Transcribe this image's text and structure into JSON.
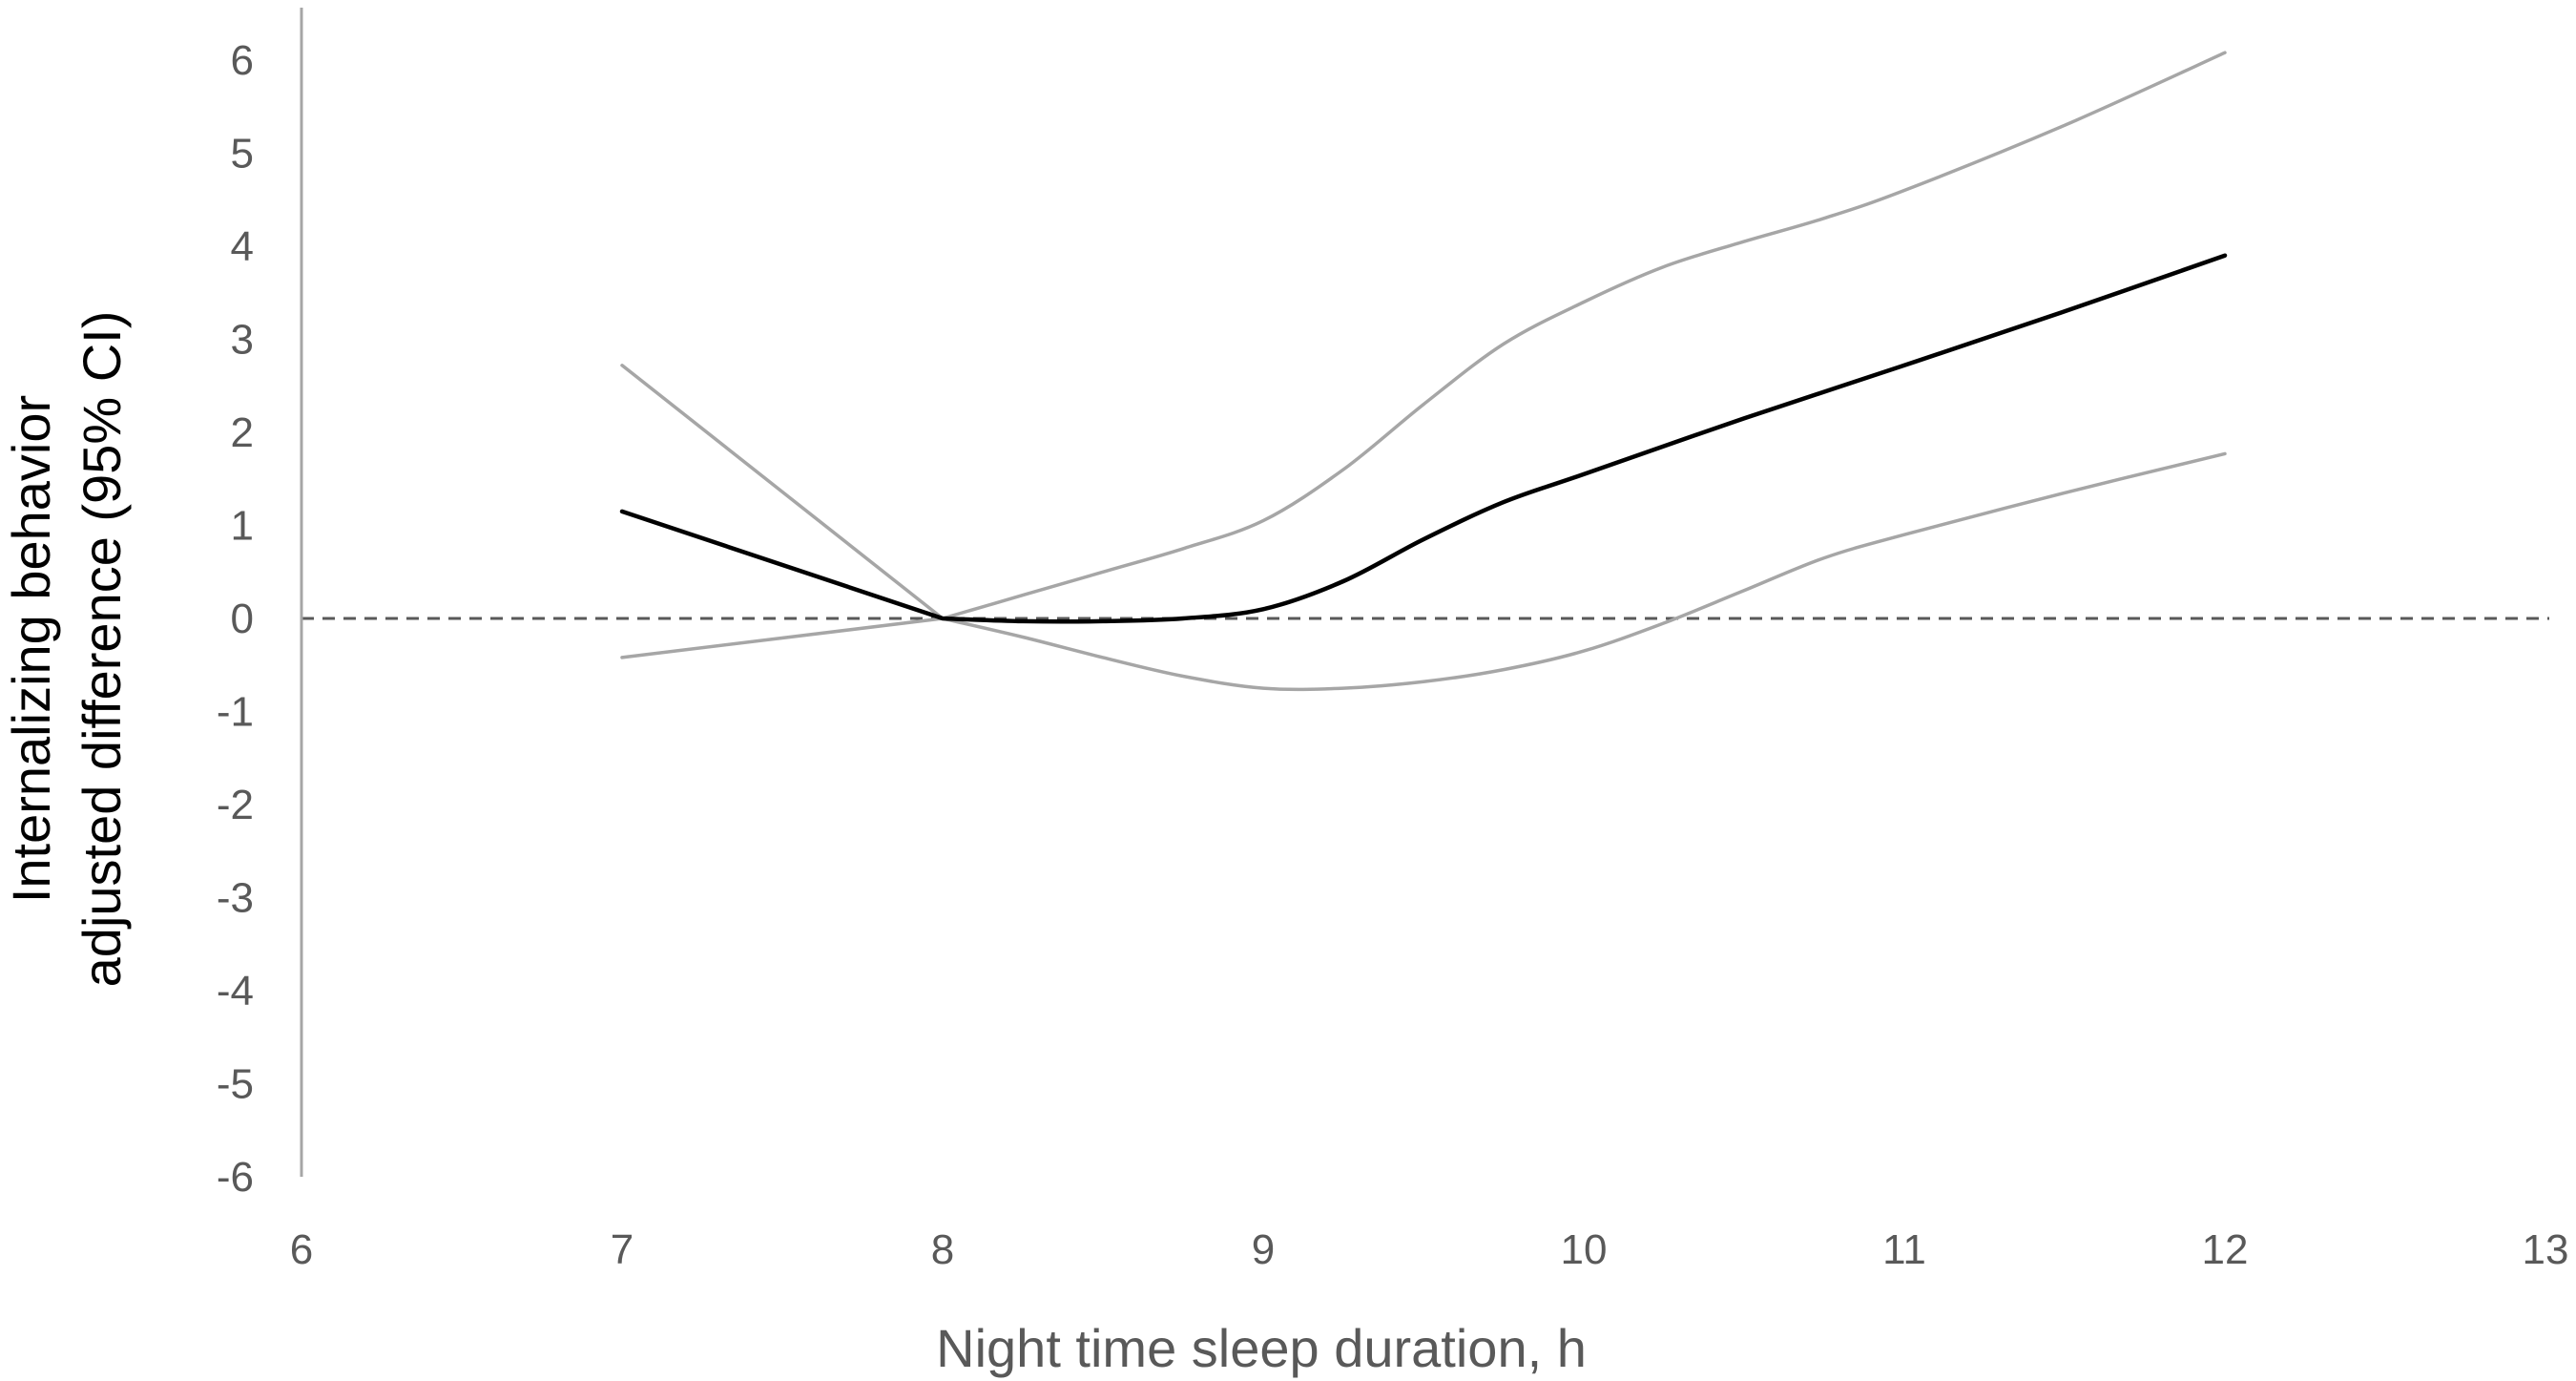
{
  "chart_data": {
    "type": "line",
    "xlabel": "Night time sleep duration, h",
    "ylabel_lines": [
      "Internalizing behavior",
      "adjusted difference (95% CI)"
    ],
    "xlim": [
      6,
      13
    ],
    "ylim": [
      -6,
      6
    ],
    "x_ticks": [
      "6",
      "7",
      "8",
      "9",
      "10",
      "11",
      "12",
      "13"
    ],
    "y_ticks": [
      "6",
      "5",
      "4",
      "3",
      "2",
      "1",
      "0",
      "-1",
      "-2",
      "-3",
      "-4",
      "-5",
      "-6"
    ],
    "reference_line": {
      "y": 0,
      "style": "dashed",
      "color": "#595959"
    },
    "grid": false,
    "legend": "none",
    "series": [
      {
        "role": "estimate",
        "color": "#000000",
        "x": [
          7,
          8,
          8.25,
          8.5,
          8.75,
          9,
          9.25,
          9.5,
          9.75,
          10,
          10.5,
          11,
          11.5,
          12
        ],
        "y": [
          1.15,
          0.0,
          -0.03,
          -0.03,
          0.0,
          0.1,
          0.4,
          0.85,
          1.25,
          1.55,
          2.15,
          2.72,
          3.3,
          3.9
        ]
      },
      {
        "role": "upper-ci",
        "color": "#a6a6a6",
        "x": [
          7,
          8,
          8.25,
          8.5,
          8.75,
          9,
          9.25,
          9.5,
          9.75,
          10,
          10.25,
          10.5,
          10.75,
          11,
          11.5,
          12
        ],
        "y": [
          2.72,
          0.0,
          0.25,
          0.5,
          0.75,
          1.05,
          1.6,
          2.3,
          2.95,
          3.4,
          3.78,
          4.05,
          4.3,
          4.6,
          5.3,
          6.08
        ]
      },
      {
        "role": "lower-ci",
        "color": "#a6a6a6",
        "x": [
          7,
          8,
          8.25,
          8.5,
          8.75,
          9,
          9.25,
          9.5,
          9.75,
          10,
          10.25,
          10.5,
          10.75,
          11,
          11.5,
          12
        ],
        "y": [
          -0.42,
          0.0,
          -0.2,
          -0.42,
          -0.62,
          -0.75,
          -0.75,
          -0.68,
          -0.55,
          -0.35,
          -0.05,
          0.3,
          0.65,
          0.9,
          1.35,
          1.77
        ]
      }
    ],
    "colors": {
      "axis": "#a6a6a6",
      "tick_text": "#595959",
      "ylabel_text": "#000000",
      "xlabel_text": "#595959"
    }
  }
}
